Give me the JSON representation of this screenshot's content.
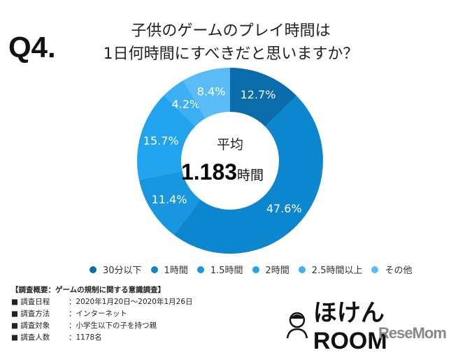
{
  "question_no": "Q4.",
  "title_lines": [
    "子供のゲームのプレイ時間は",
    "1日何時間にすべきだと思いますか？"
  ],
  "chart_data": {
    "type": "pie",
    "donut": true,
    "categories": [
      "30分以下",
      "1時間",
      "1.5時間",
      "2時間",
      "2.5時間以上",
      "その他"
    ],
    "values": [
      12.7,
      47.6,
      11.4,
      15.7,
      4.2,
      8.4
    ],
    "labels": [
      "12.7%",
      "47.6%",
      "11.4%",
      "15.7%",
      "4.2%",
      "8.4%"
    ],
    "colors": [
      "#0b6cab",
      "#0c86cf",
      "#1996e0",
      "#22a3ee",
      "#3cb0f3",
      "#5bbcf5"
    ],
    "center_label": "平均",
    "center_value": "1.183",
    "center_unit": "時間",
    "legend_position": "bottom"
  },
  "survey": {
    "heading": "【調査概要：ゲームの規制に関する意識調査】",
    "rows": [
      {
        "label": "■ 調査日程",
        "value": "：2020年1月20日～2020年1月26日"
      },
      {
        "label": "■ 調査方法",
        "value": "：インターネット"
      },
      {
        "label": "■ 調査対象",
        "value": "：小学生以下の子を持つ親"
      },
      {
        "label": "■ 調査人数",
        "value": "：1178名"
      }
    ]
  },
  "logo": {
    "brand": "ほけんROOM",
    "credit": "ReseMom"
  }
}
